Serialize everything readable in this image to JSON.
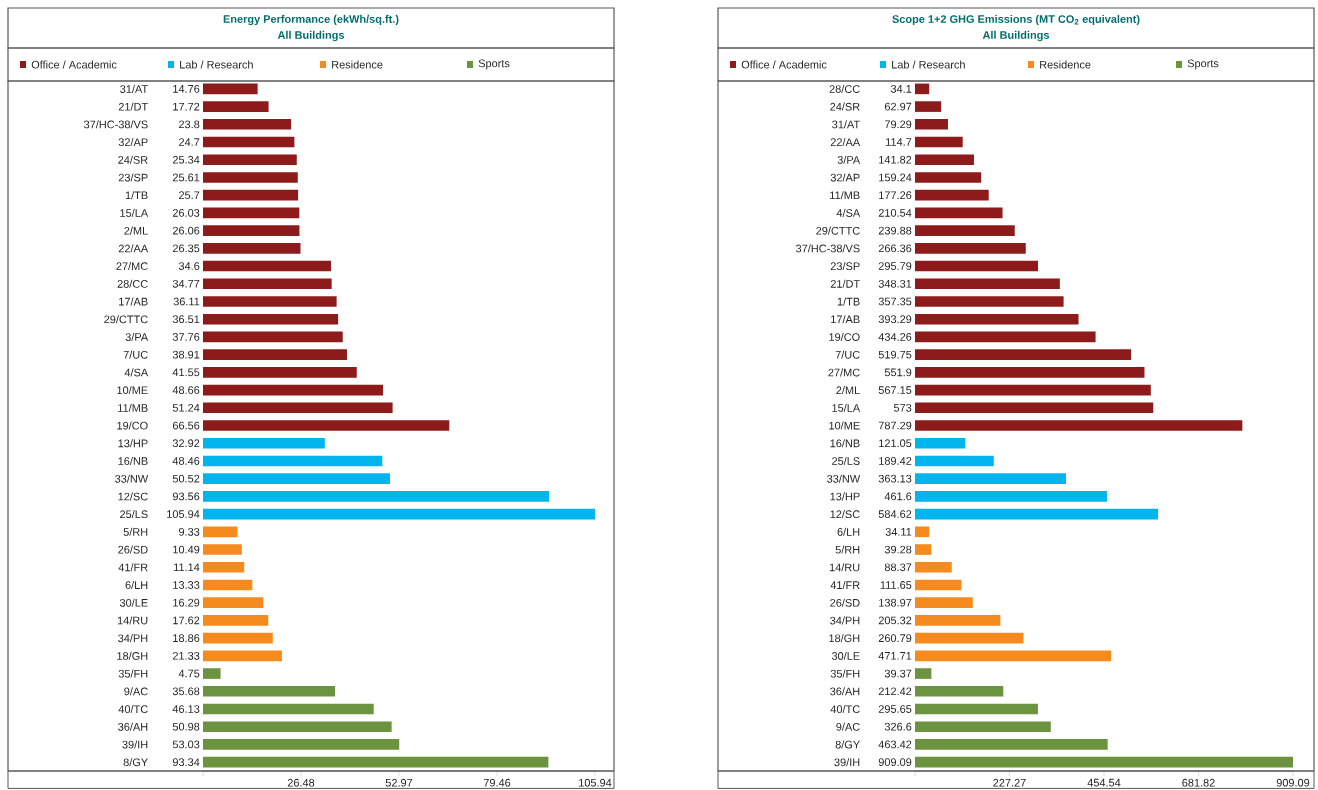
{
  "chart_data": [
    {
      "type": "bar",
      "orientation": "horizontal",
      "stacked": true,
      "title": "Energy Performance (ekWh/sq.ft.)",
      "subtitle": "All Buildings",
      "legend": "top",
      "data_labels": true,
      "categories": [
        "31/AT",
        "21/DT",
        "37/HC-38/VS",
        "32/AP",
        "24/SR",
        "23/SP",
        "1/TB",
        "15/LA",
        "2/ML",
        "22/AA",
        "27/MC",
        "28/CC",
        "17/AB",
        "29/CTTC",
        "3/PA",
        "7/UC",
        "4/SA",
        "10/ME",
        "11/MB",
        "19/CO",
        "13/HP",
        "16/NB",
        "33/NW",
        "12/SC",
        "25/LS",
        "5/RH",
        "26/SD",
        "41/FR",
        "6/LH",
        "30/LE",
        "14/RU",
        "34/PH",
        "18/GH",
        "35/FH",
        "9/AC",
        "40/TC",
        "36/AH",
        "39/IH",
        "8/GY"
      ],
      "series": [
        {
          "name": "Office / Academic",
          "color": "#8e1b1b",
          "values": [
            14.76,
            17.72,
            23.8,
            24.7,
            25.34,
            25.61,
            25.7,
            26.03,
            26.06,
            26.35,
            34.6,
            34.77,
            36.11,
            36.51,
            37.76,
            38.91,
            41.55,
            48.66,
            51.24,
            66.56,
            null,
            null,
            null,
            null,
            null,
            null,
            null,
            null,
            null,
            null,
            null,
            null,
            null,
            null,
            null,
            null,
            null,
            null,
            null
          ]
        },
        {
          "name": "Lab / Research",
          "color": "#00b4ee",
          "values": [
            null,
            null,
            null,
            null,
            null,
            null,
            null,
            null,
            null,
            null,
            null,
            null,
            null,
            null,
            null,
            null,
            null,
            null,
            null,
            null,
            32.92,
            48.46,
            50.52,
            93.56,
            105.94,
            null,
            null,
            null,
            null,
            null,
            null,
            null,
            null,
            null,
            null,
            null,
            null,
            null,
            null
          ]
        },
        {
          "name": "Residence",
          "color": "#f58a1f",
          "values": [
            null,
            null,
            null,
            null,
            null,
            null,
            null,
            null,
            null,
            null,
            null,
            null,
            null,
            null,
            null,
            null,
            null,
            null,
            null,
            null,
            null,
            null,
            null,
            null,
            null,
            9.33,
            10.49,
            11.14,
            13.33,
            16.29,
            17.62,
            18.86,
            21.33,
            null,
            null,
            null,
            null,
            null,
            null
          ]
        },
        {
          "name": "Sports",
          "color": "#6b9340",
          "values": [
            null,
            null,
            null,
            null,
            null,
            null,
            null,
            null,
            null,
            null,
            null,
            null,
            null,
            null,
            null,
            null,
            null,
            null,
            null,
            null,
            null,
            null,
            null,
            null,
            null,
            null,
            null,
            null,
            null,
            null,
            null,
            null,
            null,
            4.75,
            35.68,
            46.13,
            50.98,
            53.03,
            93.34
          ]
        }
      ],
      "xlim": [
        0,
        105.94
      ],
      "xticks": [
        {
          "value": 0,
          "label": null
        },
        26.48,
        52.97,
        79.46,
        105.94
      ]
    },
    {
      "type": "bar",
      "orientation": "horizontal",
      "stacked": true,
      "title": "Scope 1+2 GHG Emissions (MT CO$_{2}$ equivalent)",
      "subtitle": "All Buildings",
      "legend": "top",
      "data_labels": true,
      "categories": [
        "28/CC",
        "24/SR",
        "31/AT",
        "22/AA",
        "3/PA",
        "32/AP",
        "11/MB",
        "4/SA",
        "29/CTTC",
        "37/HC-38/VS",
        "23/SP",
        "21/DT",
        "1/TB",
        "17/AB",
        "19/CO",
        "7/UC",
        "27/MC",
        "2/ML",
        "15/LA",
        "10/ME",
        "16/NB",
        "25/LS",
        "33/NW",
        "13/HP",
        "12/SC",
        "6/LH",
        "5/RH",
        "14/RU",
        "41/FR",
        "26/SD",
        "34/PH",
        "18/GH",
        "30/LE",
        "35/FH",
        "36/AH",
        "40/TC",
        "9/AC",
        "8/GY",
        "39/IH"
      ],
      "series": [
        {
          "name": "Office / Academic",
          "color": "#8e1b1b",
          "values": [
            34.1,
            62.97,
            79.29,
            114.7,
            141.82,
            159.24,
            177.26,
            210.54,
            239.88,
            266.36,
            295.79,
            348.31,
            357.35,
            393.29,
            434.26,
            519.75,
            551.9,
            567.15,
            573,
            787.29,
            null,
            null,
            null,
            null,
            null,
            null,
            null,
            null,
            null,
            null,
            null,
            null,
            null,
            null,
            null,
            null,
            null,
            null,
            null
          ]
        },
        {
          "name": "Lab / Research",
          "color": "#00b4ee",
          "values": [
            null,
            null,
            null,
            null,
            null,
            null,
            null,
            null,
            null,
            null,
            null,
            null,
            null,
            null,
            null,
            null,
            null,
            null,
            null,
            null,
            121.05,
            189.42,
            363.13,
            461.6,
            584.62,
            null,
            null,
            null,
            null,
            null,
            null,
            null,
            null,
            null,
            null,
            null,
            null,
            null,
            null
          ]
        },
        {
          "name": "Residence",
          "color": "#f58a1f",
          "values": [
            null,
            null,
            null,
            null,
            null,
            null,
            null,
            null,
            null,
            null,
            null,
            null,
            null,
            null,
            null,
            null,
            null,
            null,
            null,
            null,
            null,
            null,
            null,
            null,
            null,
            34.11,
            39.28,
            88.37,
            111.65,
            138.97,
            205.32,
            260.79,
            471.71,
            null,
            null,
            null,
            null,
            null,
            null
          ]
        },
        {
          "name": "Sports",
          "color": "#6b9340",
          "values": [
            null,
            null,
            null,
            null,
            null,
            null,
            null,
            null,
            null,
            null,
            null,
            null,
            null,
            null,
            null,
            null,
            null,
            null,
            null,
            null,
            null,
            null,
            null,
            null,
            null,
            null,
            null,
            null,
            null,
            null,
            null,
            null,
            null,
            39.37,
            212.42,
            295.65,
            326.6,
            463.42,
            909.09
          ]
        }
      ],
      "xlim": [
        0,
        909.09
      ],
      "xticks": [
        {
          "value": 0,
          "label": null
        },
        227.27,
        454.54,
        681.82,
        909.09
      ]
    }
  ]
}
